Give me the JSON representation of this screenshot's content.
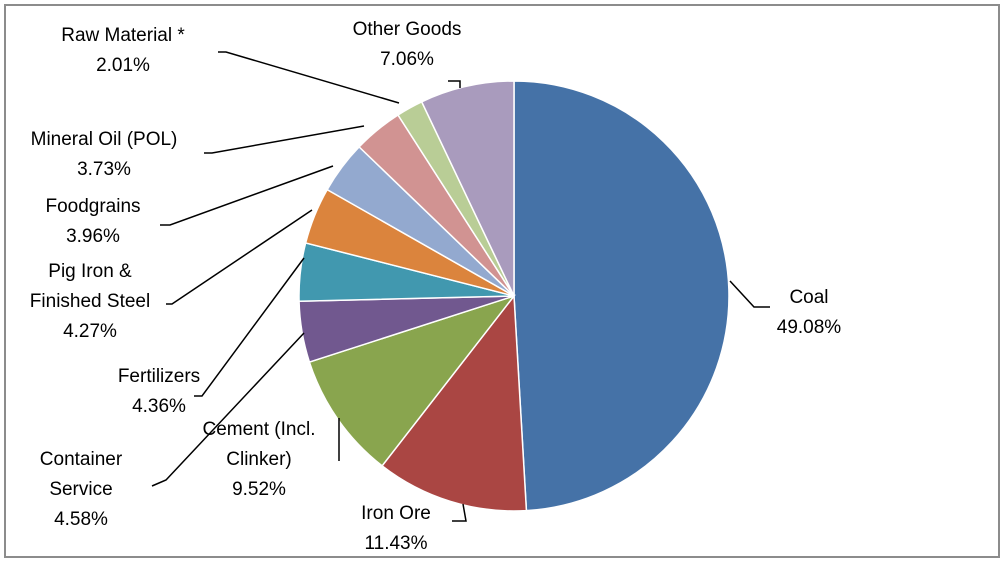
{
  "chart_data": {
    "type": "pie",
    "title": "",
    "categories": [
      "Coal",
      "Iron Ore",
      "Cement (Incl. Clinker)",
      "Container Service",
      "Fertilizers",
      "Pig Iron & Finished Steel",
      "Foodgrains",
      "Mineral Oil (POL)",
      "Raw Material *",
      "Other Goods"
    ],
    "values": [
      49.08,
      11.43,
      9.52,
      4.58,
      4.36,
      4.27,
      3.96,
      3.73,
      2.01,
      7.06
    ],
    "label_lines": [
      [
        "Coal"
      ],
      [
        "Iron Ore"
      ],
      [
        "Cement (Incl.",
        "Clinker)"
      ],
      [
        "Container",
        "Service"
      ],
      [
        "Fertilizers"
      ],
      [
        "Pig Iron &",
        "Finished Steel"
      ],
      [
        "Foodgrains"
      ],
      [
        "Mineral Oil (POL)"
      ],
      [
        "Raw Material *"
      ],
      [
        "Other Goods"
      ]
    ],
    "value_labels": [
      "49.08%",
      "11.43%",
      "9.52%",
      "4.58%",
      "4.36%",
      "4.27%",
      "3.96%",
      "3.73%",
      "2.01%",
      "7.06%"
    ],
    "colors": [
      "#4572a7",
      "#aa4643",
      "#89a54e",
      "#71588f",
      "#4198af",
      "#db843d",
      "#93a9cf",
      "#d19392",
      "#b9cd96",
      "#a99bbd"
    ],
    "start_angle_deg": 0,
    "direction": "clockwise",
    "legend": "none"
  }
}
